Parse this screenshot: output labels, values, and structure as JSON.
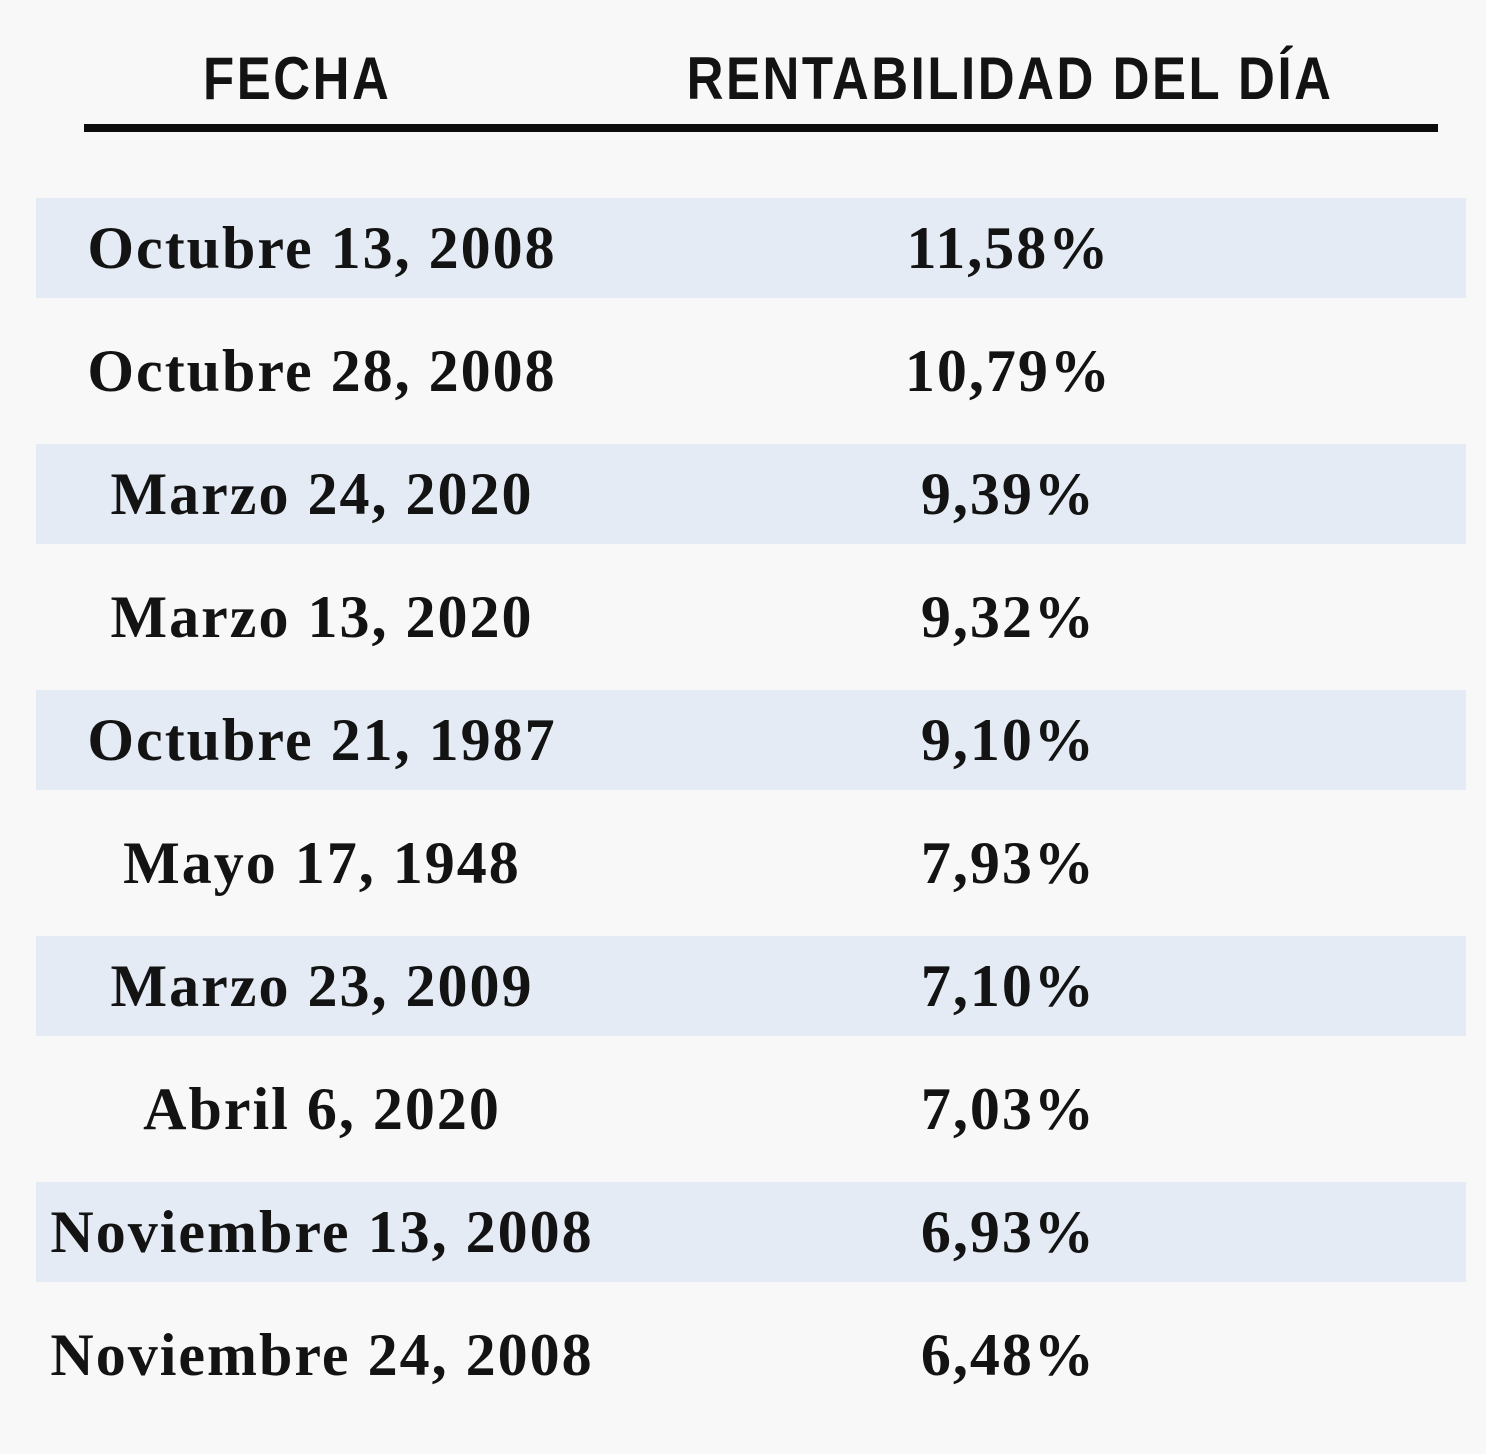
{
  "header": {
    "col_fecha": "FECHA",
    "col_rentabilidad": "RENTABILIDAD DEL DÍA"
  },
  "table": {
    "rows": [
      {
        "date": "Octubre 13, 2008",
        "value": "11,58%"
      },
      {
        "date": "Octubre 28, 2008",
        "value": "10,79%"
      },
      {
        "date": "Marzo 24, 2020",
        "value": "9,39%"
      },
      {
        "date": "Marzo 13, 2020",
        "value": "9,32%"
      },
      {
        "date": "Octubre 21, 1987",
        "value": "9,10%"
      },
      {
        "date": "Mayo 17, 1948",
        "value": "7,93%"
      },
      {
        "date": "Marzo 23, 2009",
        "value": "7,10%"
      },
      {
        "date": "Abril 6, 2020",
        "value": "7,03%"
      },
      {
        "date": "Noviembre 13, 2008",
        "value": "6,93%"
      },
      {
        "date": "Noviembre 24, 2008",
        "value": "6,48%"
      }
    ]
  },
  "colors": {
    "background": "#f8f8f8",
    "stripe": "#e5ebf4",
    "rule": "#0d0d0d",
    "text": "#131313"
  },
  "chart_data": {
    "type": "table",
    "columns": [
      "FECHA",
      "RENTABILIDAD DEL DÍA"
    ],
    "categories": [
      "Octubre 13, 2008",
      "Octubre 28, 2008",
      "Marzo 24, 2020",
      "Marzo 13, 2020",
      "Octubre 21, 1987",
      "Mayo 17, 1948",
      "Marzo 23, 2009",
      "Abril 6, 2020",
      "Noviembre 13, 2008",
      "Noviembre 24, 2008"
    ],
    "values": [
      11.58,
      10.79,
      9.39,
      9.32,
      9.1,
      7.93,
      7.1,
      7.03,
      6.93,
      6.48
    ],
    "value_unit": "%",
    "layout": {
      "striped_rows": "odd",
      "grid": "off",
      "legend": "none"
    }
  }
}
